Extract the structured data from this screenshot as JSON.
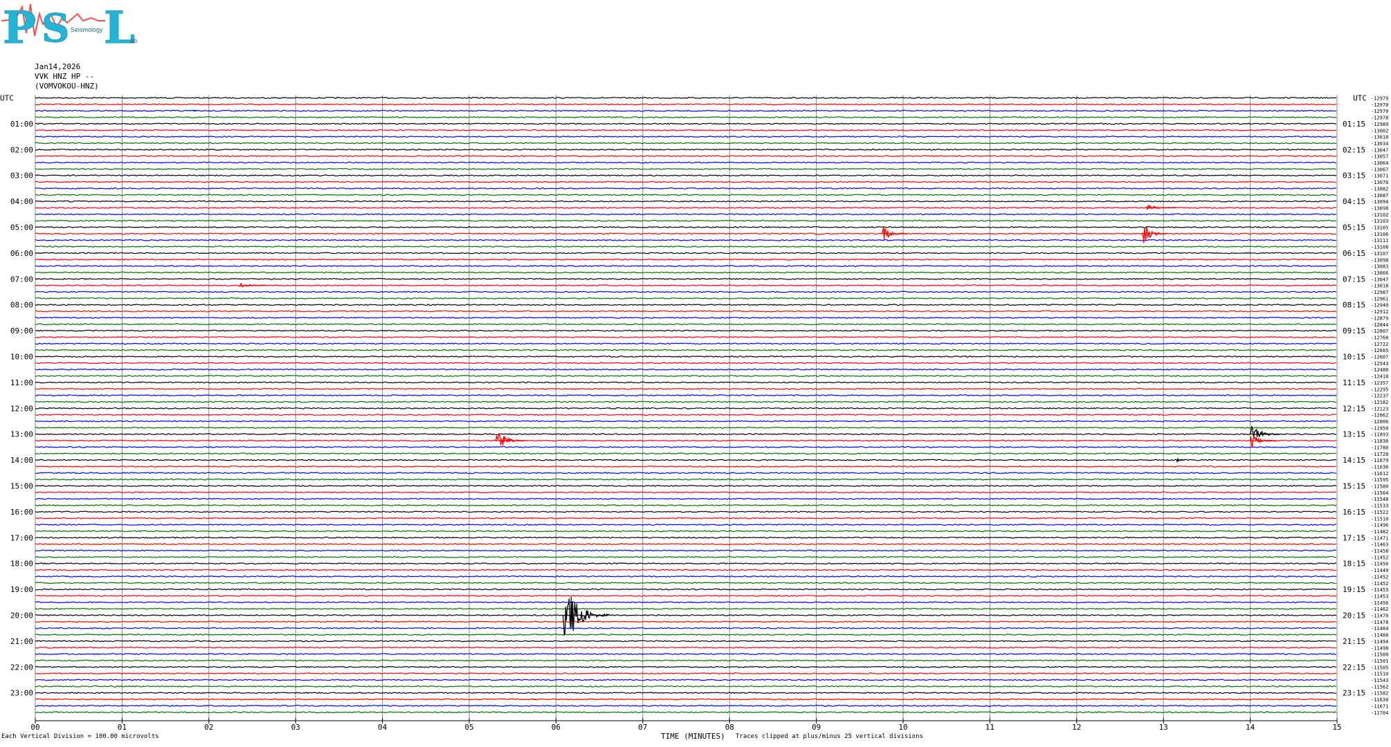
{
  "header": {
    "logo": "PSL",
    "logo_subtitle": "Seismology Lab",
    "date": "Jan14,2026",
    "station": "VVK HNZ HP --",
    "station_code": "(VOMVOKOU-HNZ)"
  },
  "footer": {
    "division_note": "Each Vertical Division =  100.00 microvolts",
    "clip_note": "Traces clipped at plus/minus 25 vertical divisions"
  },
  "colors": {
    "black": "#000000",
    "red": "#ff0000",
    "blue": "#0000ff",
    "green": "#007000",
    "grid": "#888888"
  },
  "chart_data": {
    "type": "line",
    "title": "Jan14,2026",
    "xlabel": "TIME (MINUTES)",
    "x_range": [
      0,
      15
    ],
    "x_ticks": [
      "00",
      "01",
      "02",
      "03",
      "04",
      "05",
      "06",
      "07",
      "08",
      "09",
      "10",
      "11",
      "12",
      "13",
      "14",
      "15"
    ],
    "left_axis_title": "UTC",
    "right_axis_title": "UTC",
    "left_hour_labels": [
      "01:00",
      "02:00",
      "03:00",
      "04:00",
      "05:00",
      "06:00",
      "07:00",
      "08:00",
      "09:00",
      "10:00",
      "11:00",
      "12:00",
      "13:00",
      "14:00",
      "15:00",
      "16:00",
      "17:00",
      "18:00",
      "19:00",
      "20:00",
      "21:00",
      "22:00",
      "23:00"
    ],
    "right_hour_labels": [
      "01:15",
      "02:15",
      "03:15",
      "04:15",
      "05:15",
      "06:15",
      "07:15",
      "08:15",
      "09:15",
      "10:15",
      "11:15",
      "12:15",
      "13:15",
      "14:15",
      "15:15",
      "16:15",
      "17:15",
      "18:15",
      "19:15",
      "20:15",
      "21:15",
      "22:15",
      "23:15"
    ],
    "trace_color_cycle": [
      "black",
      "red",
      "blue",
      "green"
    ],
    "trace_count": 96,
    "minutes_per_trace": 15,
    "trace_offsets": [
      -12979,
      -12970,
      -12970,
      -12978,
      -12989,
      -13002,
      -13018,
      -13034,
      -13047,
      -13057,
      -13064,
      -13067,
      -13071,
      -13076,
      -13082,
      -13087,
      -13094,
      -13098,
      -13102,
      -13103,
      -13105,
      -13106,
      -13111,
      -13108,
      -13107,
      -13098,
      -13083,
      -13066,
      -13047,
      -13018,
      -12987,
      -12961,
      -12940,
      -12912,
      -12879,
      -12844,
      -12807,
      -12768,
      -12722,
      -12665,
      -12607,
      -12543,
      -12480,
      -12418,
      -12357,
      -12295,
      -12237,
      -12182,
      -12123,
      -12062,
      -12006,
      -11950,
      -11893,
      -11836,
      -11780,
      -11728,
      -11679,
      -11636,
      -11612,
      -11595,
      -11580,
      -11564,
      -11548,
      -11533,
      -11522,
      -11510,
      -11496,
      -11482,
      -11471,
      -11463,
      -11458,
      -11452,
      -11450,
      -11449,
      -11452,
      -11452,
      -11453,
      -11453,
      -11456,
      -11462,
      -11470,
      -11478,
      -11484,
      -11488,
      -11494,
      -11498,
      -11500,
      -11501,
      -11505,
      -11510,
      -11543,
      -11562,
      -11582,
      -11630,
      -11671,
      -11704
    ],
    "events": [
      {
        "trace": 2,
        "minute": 1.82,
        "amp": 8,
        "len": 0.05
      },
      {
        "trace": 17,
        "minute": 12.8,
        "amp": 6,
        "len": 0.35
      },
      {
        "trace": 21,
        "minute": 9.75,
        "amp": 14,
        "len": 0.3
      },
      {
        "trace": 21,
        "minute": 12.75,
        "amp": 20,
        "len": 0.3
      },
      {
        "trace": 29,
        "minute": 2.35,
        "amp": 5,
        "len": 0.3
      },
      {
        "trace": 53,
        "minute": 5.3,
        "amp": 20,
        "len": 0.35
      },
      {
        "trace": 52,
        "minute": 14.0,
        "amp": 18,
        "len": 0.35
      },
      {
        "trace": 53,
        "minute": 14.0,
        "amp": 14,
        "len": 0.3
      },
      {
        "trace": 56,
        "minute": 13.15,
        "amp": 5,
        "len": 0.1
      },
      {
        "trace": 80,
        "minute": 6.08,
        "amp": 55,
        "len": 0.55
      },
      {
        "trace": 81,
        "minute": 3.92,
        "amp": 4,
        "len": 0.05
      },
      {
        "trace": 93,
        "minute": 5.72,
        "amp": 3,
        "len": 0.05
      }
    ]
  }
}
